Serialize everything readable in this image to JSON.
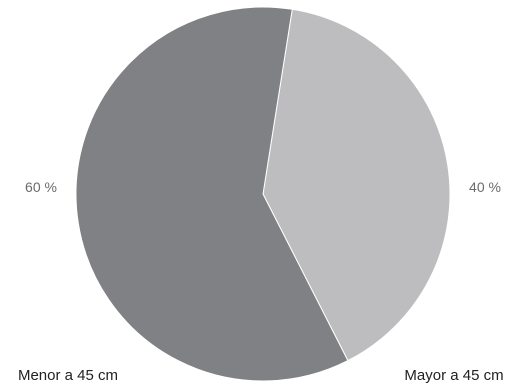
{
  "chart_data": {
    "type": "pie",
    "title": "",
    "start_angle_deg": 9,
    "direction": "clockwise",
    "slices": [
      {
        "label": "Mayor a 45 cm",
        "value": 40,
        "value_label": "40 %",
        "color": "#bdbdbf"
      },
      {
        "label": "Menor a 45 cm",
        "value": 60,
        "value_label": "60 %",
        "color": "#808184"
      }
    ]
  }
}
